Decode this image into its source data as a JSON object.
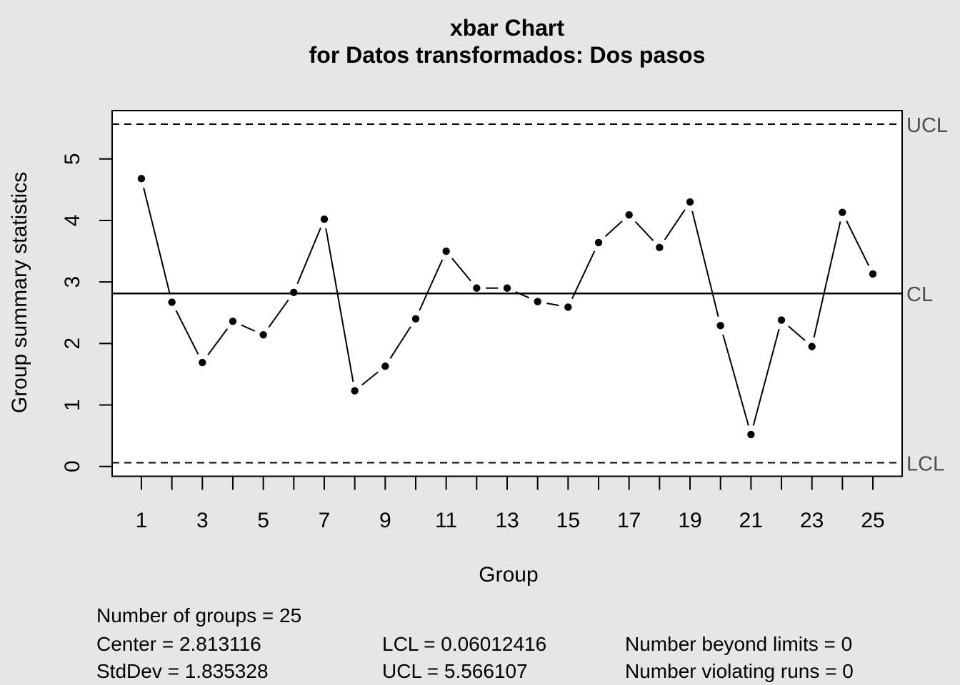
{
  "title": {
    "line1": "xbar Chart",
    "line2": "for Datos transformados: Dos pasos"
  },
  "y_axis": {
    "label": "Group summary statistics",
    "ticks": [
      0,
      1,
      2,
      3,
      4,
      5
    ]
  },
  "x_axis": {
    "label": "Group",
    "labeled_ticks": [
      1,
      3,
      5,
      7,
      9,
      11,
      13,
      15,
      17,
      19,
      21,
      23,
      25
    ]
  },
  "limit_labels": {
    "ucl": "UCL",
    "cl": "CL",
    "lcl": "LCL"
  },
  "chart_data": {
    "type": "line",
    "title": "xbar Chart for Datos transformados: Dos pasos",
    "xlabel": "Group",
    "ylabel": "Group summary statistics",
    "x": [
      1,
      2,
      3,
      4,
      5,
      6,
      7,
      8,
      9,
      10,
      11,
      12,
      13,
      14,
      15,
      16,
      17,
      18,
      19,
      20,
      21,
      22,
      23,
      24,
      25
    ],
    "values": [
      4.68,
      2.67,
      1.69,
      2.36,
      2.14,
      2.83,
      4.02,
      1.23,
      1.63,
      2.4,
      3.5,
      2.9,
      2.9,
      2.68,
      2.59,
      3.64,
      4.09,
      3.56,
      4.3,
      2.29,
      0.52,
      2.38,
      1.95,
      4.13,
      3.13
    ],
    "center": 2.813116,
    "std_dev": 1.835328,
    "ucl": 5.566107,
    "lcl": 0.06012416,
    "number_of_groups": 25,
    "number_beyond_limits": 0,
    "number_violating_runs": 0,
    "xlim": [
      0.04,
      25.96
    ],
    "ylim": [
      -0.16,
      5.786
    ],
    "grid": false,
    "marker": "filled-circle",
    "line_style_limits": "dashed",
    "line_style_center": "solid"
  },
  "stats_panel": {
    "number_of_groups": "Number of groups = 25",
    "center": "Center = 2.813116",
    "std_dev": "StdDev = 1.835328",
    "lcl": "LCL = 0.06012416",
    "ucl": "UCL = 5.566107",
    "beyond_limits": "Number beyond limits = 0",
    "violating_runs": "Number violating runs = 0"
  },
  "colors": {
    "background": "#E6E6E6",
    "plot_background": "#FFFFFF",
    "series": "#000000",
    "limit_label_text": "#4D4D4D"
  }
}
